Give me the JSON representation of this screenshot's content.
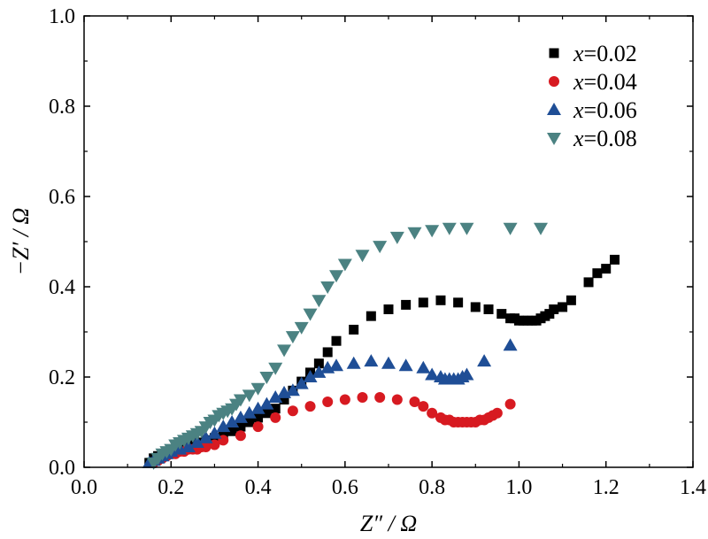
{
  "chart_data": {
    "type": "scatter",
    "title": "",
    "xlabel": "Z″ / Ω",
    "ylabel": "−Z′ / Ω",
    "xlim": [
      0.0,
      1.4
    ],
    "ylim": [
      0.0,
      1.0
    ],
    "xticks": [
      "0.0",
      "0.2",
      "0.4",
      "0.6",
      "0.8",
      "1.0",
      "1.2",
      "1.4"
    ],
    "yticks": [
      "0.0",
      "0.2",
      "0.4",
      "0.6",
      "0.8",
      "1.0"
    ],
    "grid": false,
    "legend_position": "top-right",
    "series": [
      {
        "name": "x=0.02",
        "var": "x",
        "val": "=0.02",
        "marker": "square",
        "color": "#000000",
        "x": [
          0.15,
          0.16,
          0.17,
          0.18,
          0.19,
          0.2,
          0.21,
          0.22,
          0.23,
          0.24,
          0.25,
          0.26,
          0.27,
          0.28,
          0.29,
          0.3,
          0.32,
          0.34,
          0.36,
          0.38,
          0.4,
          0.42,
          0.44,
          0.46,
          0.48,
          0.5,
          0.52,
          0.54,
          0.56,
          0.58,
          0.62,
          0.66,
          0.7,
          0.74,
          0.78,
          0.82,
          0.86,
          0.9,
          0.93,
          0.96,
          0.98,
          0.99,
          1.0,
          1.01,
          1.02,
          1.03,
          1.04,
          1.05,
          1.06,
          1.07,
          1.08,
          1.1,
          1.12,
          1.16,
          1.18,
          1.2,
          1.22
        ],
        "y": [
          0.01,
          0.02,
          0.025,
          0.03,
          0.035,
          0.04,
          0.04,
          0.045,
          0.045,
          0.05,
          0.05,
          0.055,
          0.055,
          0.06,
          0.06,
          0.065,
          0.07,
          0.08,
          0.09,
          0.1,
          0.11,
          0.12,
          0.13,
          0.15,
          0.17,
          0.19,
          0.21,
          0.23,
          0.255,
          0.28,
          0.305,
          0.335,
          0.35,
          0.36,
          0.365,
          0.37,
          0.365,
          0.355,
          0.35,
          0.34,
          0.33,
          0.33,
          0.325,
          0.325,
          0.325,
          0.325,
          0.325,
          0.33,
          0.335,
          0.34,
          0.35,
          0.355,
          0.37,
          0.41,
          0.43,
          0.44,
          0.46
        ]
      },
      {
        "name": "x=0.04",
        "var": "x",
        "val": "=0.04",
        "marker": "circle",
        "color": "#d71a21",
        "x": [
          0.16,
          0.17,
          0.18,
          0.19,
          0.2,
          0.21,
          0.22,
          0.23,
          0.24,
          0.25,
          0.26,
          0.27,
          0.28,
          0.3,
          0.32,
          0.36,
          0.4,
          0.44,
          0.48,
          0.52,
          0.56,
          0.6,
          0.64,
          0.68,
          0.72,
          0.76,
          0.78,
          0.8,
          0.82,
          0.83,
          0.84,
          0.85,
          0.86,
          0.87,
          0.88,
          0.89,
          0.9,
          0.91,
          0.92,
          0.93,
          0.94,
          0.95,
          0.98
        ],
        "y": [
          0.01,
          0.015,
          0.02,
          0.025,
          0.03,
          0.03,
          0.035,
          0.035,
          0.04,
          0.04,
          0.04,
          0.045,
          0.045,
          0.05,
          0.06,
          0.07,
          0.09,
          0.11,
          0.125,
          0.135,
          0.145,
          0.15,
          0.155,
          0.155,
          0.15,
          0.145,
          0.135,
          0.12,
          0.11,
          0.105,
          0.105,
          0.1,
          0.1,
          0.1,
          0.1,
          0.1,
          0.1,
          0.105,
          0.105,
          0.11,
          0.115,
          0.12,
          0.14
        ]
      },
      {
        "name": "x=0.06",
        "var": "x",
        "val": "=0.06",
        "marker": "triangle-up",
        "color": "#1f4e96",
        "x": [
          0.15,
          0.16,
          0.17,
          0.18,
          0.19,
          0.2,
          0.22,
          0.24,
          0.26,
          0.28,
          0.3,
          0.32,
          0.34,
          0.36,
          0.38,
          0.4,
          0.42,
          0.44,
          0.46,
          0.48,
          0.5,
          0.52,
          0.54,
          0.56,
          0.58,
          0.62,
          0.66,
          0.7,
          0.74,
          0.78,
          0.8,
          0.82,
          0.83,
          0.84,
          0.85,
          0.86,
          0.87,
          0.88,
          0.92,
          0.98
        ],
        "y": [
          0.01,
          0.015,
          0.02,
          0.025,
          0.03,
          0.035,
          0.04,
          0.045,
          0.055,
          0.065,
          0.075,
          0.09,
          0.1,
          0.11,
          0.12,
          0.13,
          0.14,
          0.155,
          0.165,
          0.17,
          0.185,
          0.2,
          0.21,
          0.22,
          0.225,
          0.23,
          0.235,
          0.23,
          0.225,
          0.22,
          0.205,
          0.2,
          0.195,
          0.195,
          0.195,
          0.195,
          0.2,
          0.205,
          0.235,
          0.27
        ]
      },
      {
        "name": "x=0.08",
        "var": "x",
        "val": "=0.08",
        "marker": "triangle-down",
        "color": "#4b8282",
        "x": [
          0.16,
          0.17,
          0.18,
          0.19,
          0.2,
          0.21,
          0.22,
          0.23,
          0.24,
          0.25,
          0.26,
          0.27,
          0.28,
          0.29,
          0.3,
          0.31,
          0.32,
          0.33,
          0.34,
          0.35,
          0.36,
          0.38,
          0.4,
          0.42,
          0.44,
          0.46,
          0.48,
          0.5,
          0.52,
          0.54,
          0.56,
          0.58,
          0.6,
          0.64,
          0.68,
          0.72,
          0.76,
          0.8,
          0.84,
          0.88,
          0.98,
          1.05
        ],
        "y": [
          0.01,
          0.02,
          0.03,
          0.035,
          0.04,
          0.05,
          0.055,
          0.06,
          0.065,
          0.07,
          0.075,
          0.08,
          0.09,
          0.1,
          0.105,
          0.115,
          0.12,
          0.125,
          0.13,
          0.14,
          0.15,
          0.16,
          0.175,
          0.2,
          0.22,
          0.26,
          0.29,
          0.31,
          0.34,
          0.37,
          0.4,
          0.425,
          0.45,
          0.47,
          0.49,
          0.51,
          0.52,
          0.525,
          0.53,
          0.53,
          0.53,
          0.53
        ]
      }
    ]
  }
}
